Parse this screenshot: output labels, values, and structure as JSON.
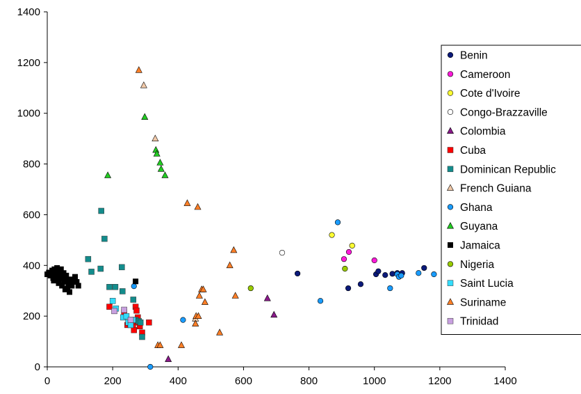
{
  "chart_data": {
    "type": "scatter",
    "title": "",
    "xlabel": "",
    "ylabel": "",
    "xlim": [
      0,
      1400
    ],
    "ylim": [
      0,
      1400
    ],
    "xticks": [
      "0",
      "200",
      "400",
      "600",
      "800",
      "1000",
      "1200",
      "1400"
    ],
    "yticks": [
      "0",
      "200",
      "400",
      "600",
      "800",
      "1000",
      "1200",
      "1400"
    ],
    "grid": false,
    "legend_position": "right",
    "series": [
      {
        "name": "Benin",
        "marker": "circle",
        "color": "#0b1a7a",
        "points": [
          [
            765,
            368
          ],
          [
            920,
            310
          ],
          [
            958,
            326
          ],
          [
            1005,
            365
          ],
          [
            1012,
            377
          ],
          [
            1033,
            362
          ],
          [
            1055,
            367
          ],
          [
            1070,
            370
          ],
          [
            1085,
            370
          ],
          [
            1152,
            390
          ]
        ]
      },
      {
        "name": "Cameroon",
        "marker": "circle",
        "color": "#ff1ad9",
        "points": [
          [
            907,
            425
          ],
          [
            922,
            453
          ],
          [
            1000,
            420
          ]
        ]
      },
      {
        "name": "Cote d'Ivoire",
        "marker": "circle",
        "color": "#ffff33",
        "points": [
          [
            870,
            520
          ],
          [
            932,
            478
          ]
        ]
      },
      {
        "name": "Congo-Brazzaville",
        "marker": "circle",
        "color": "#ffffff",
        "points": [
          [
            718,
            450
          ]
        ]
      },
      {
        "name": "Colombia",
        "marker": "triangle",
        "color": "#8b1a8b",
        "points": [
          [
            370,
            30
          ],
          [
            673,
            270
          ],
          [
            693,
            205
          ]
        ]
      },
      {
        "name": "Cuba",
        "marker": "square",
        "color": "#ff0000",
        "points": [
          [
            190,
            237
          ],
          [
            245,
            165
          ],
          [
            253,
            170
          ],
          [
            262,
            165
          ],
          [
            265,
            145
          ],
          [
            270,
            237
          ],
          [
            273,
            222
          ],
          [
            278,
            175
          ],
          [
            283,
            160
          ],
          [
            290,
            135
          ],
          [
            311,
            175
          ],
          [
            277,
            195
          ],
          [
            260,
            180
          ],
          [
            235,
            215
          ]
        ]
      },
      {
        "name": "Dominican Republic",
        "marker": "square",
        "color": "#138c8c",
        "points": [
          [
            125,
            425
          ],
          [
            135,
            375
          ],
          [
            163,
            387
          ],
          [
            165,
            615
          ],
          [
            175,
            505
          ],
          [
            190,
            315
          ],
          [
            208,
            315
          ],
          [
            228,
            393
          ],
          [
            230,
            298
          ],
          [
            263,
            265
          ],
          [
            270,
            185
          ],
          [
            280,
            180
          ],
          [
            285,
            175
          ],
          [
            290,
            118
          ]
        ]
      },
      {
        "name": "French Guiana",
        "marker": "triangle",
        "color": "#f0c8a8",
        "points": [
          [
            295,
            1110
          ],
          [
            330,
            900
          ],
          [
            453,
            190
          ]
        ]
      },
      {
        "name": "Ghana",
        "marker": "circle",
        "color": "#1a9cff",
        "points": [
          [
            265,
            318
          ],
          [
            315,
            0
          ],
          [
            415,
            185
          ],
          [
            835,
            260
          ],
          [
            888,
            570
          ],
          [
            1048,
            310
          ],
          [
            1070,
            365
          ],
          [
            1075,
            355
          ],
          [
            1082,
            360
          ],
          [
            1135,
            370
          ],
          [
            1182,
            365
          ]
        ]
      },
      {
        "name": "Guyana",
        "marker": "triangle",
        "color": "#22cc22",
        "points": [
          [
            185,
            755
          ],
          [
            298,
            985
          ],
          [
            332,
            855
          ],
          [
            335,
            840
          ],
          [
            345,
            805
          ],
          [
            348,
            780
          ],
          [
            360,
            755
          ]
        ]
      },
      {
        "name": "Jamaica",
        "marker": "square",
        "color": "#000000",
        "points": [
          [
            0,
            365
          ],
          [
            5,
            372
          ],
          [
            10,
            360
          ],
          [
            15,
            380
          ],
          [
            18,
            350
          ],
          [
            20,
            340
          ],
          [
            22,
            385
          ],
          [
            25,
            370
          ],
          [
            28,
            355
          ],
          [
            30,
            390
          ],
          [
            32,
            345
          ],
          [
            35,
            330
          ],
          [
            38,
            375
          ],
          [
            40,
            360
          ],
          [
            42,
            385
          ],
          [
            45,
            320
          ],
          [
            48,
            350
          ],
          [
            50,
            370
          ],
          [
            52,
            335
          ],
          [
            55,
            305
          ],
          [
            58,
            360
          ],
          [
            60,
            340
          ],
          [
            62,
            310
          ],
          [
            65,
            325
          ],
          [
            68,
            295
          ],
          [
            70,
            345
          ],
          [
            72,
            330
          ],
          [
            75,
            320
          ],
          [
            78,
            340
          ],
          [
            85,
            355
          ],
          [
            90,
            335
          ],
          [
            95,
            320
          ],
          [
            270,
            337
          ]
        ]
      },
      {
        "name": "Nigeria",
        "marker": "circle",
        "color": "#99cc00",
        "points": [
          [
            622,
            310
          ],
          [
            910,
            387
          ]
        ]
      },
      {
        "name": "Saint Lucia",
        "marker": "square",
        "color": "#33ddff",
        "points": [
          [
            200,
            260
          ],
          [
            210,
            230
          ],
          [
            232,
            195
          ],
          [
            242,
            200
          ],
          [
            248,
            175
          ],
          [
            255,
            165
          ],
          [
            262,
            185
          ]
        ]
      },
      {
        "name": "Suriname",
        "marker": "triangle",
        "color": "#ff7f27",
        "points": [
          [
            280,
            1170
          ],
          [
            338,
            85
          ],
          [
            345,
            85
          ],
          [
            410,
            85
          ],
          [
            428,
            645
          ],
          [
            453,
            170
          ],
          [
            455,
            200
          ],
          [
            460,
            630
          ],
          [
            462,
            200
          ],
          [
            465,
            280
          ],
          [
            472,
            305
          ],
          [
            477,
            305
          ],
          [
            482,
            255
          ],
          [
            527,
            135
          ],
          [
            558,
            400
          ],
          [
            570,
            460
          ],
          [
            575,
            280
          ]
        ]
      },
      {
        "name": "Trinidad",
        "marker": "square",
        "color": "#c8a0e0",
        "points": [
          [
            205,
            220
          ],
          [
            235,
            225
          ],
          [
            255,
            185
          ]
        ]
      }
    ]
  }
}
